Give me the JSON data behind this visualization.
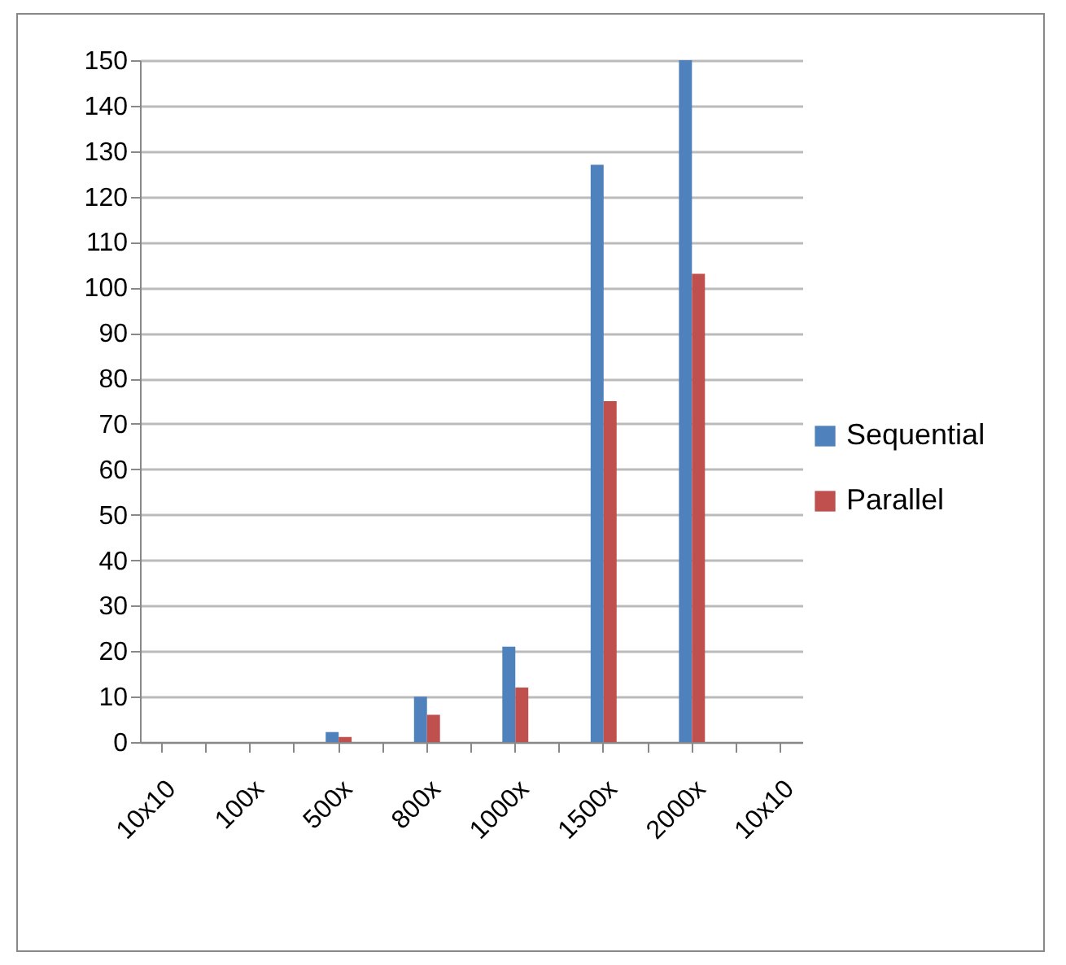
{
  "chart_data": {
    "type": "bar",
    "categories": [
      "10x10",
      null,
      "100x",
      null,
      "500x",
      null,
      "800x",
      null,
      "1000x",
      null,
      "1500x",
      null,
      "2000x",
      null,
      "10x10"
    ],
    "series": [
      {
        "name": "Sequential",
        "color": "#4f81bd",
        "values": [
          null,
          null,
          null,
          null,
          2.2,
          null,
          10,
          null,
          21,
          null,
          127,
          null,
          150,
          null,
          null
        ]
      },
      {
        "name": "Parallel",
        "color": "#c0504d",
        "values": [
          null,
          null,
          null,
          null,
          1.1,
          null,
          6,
          null,
          12,
          null,
          75,
          null,
          103,
          null,
          null
        ]
      }
    ],
    "ylim": [
      0,
      150
    ],
    "yticks": [
      0,
      10,
      20,
      30,
      40,
      50,
      60,
      70,
      80,
      90,
      100,
      110,
      120,
      130,
      140,
      150
    ],
    "grid": "y",
    "legend": "right"
  }
}
